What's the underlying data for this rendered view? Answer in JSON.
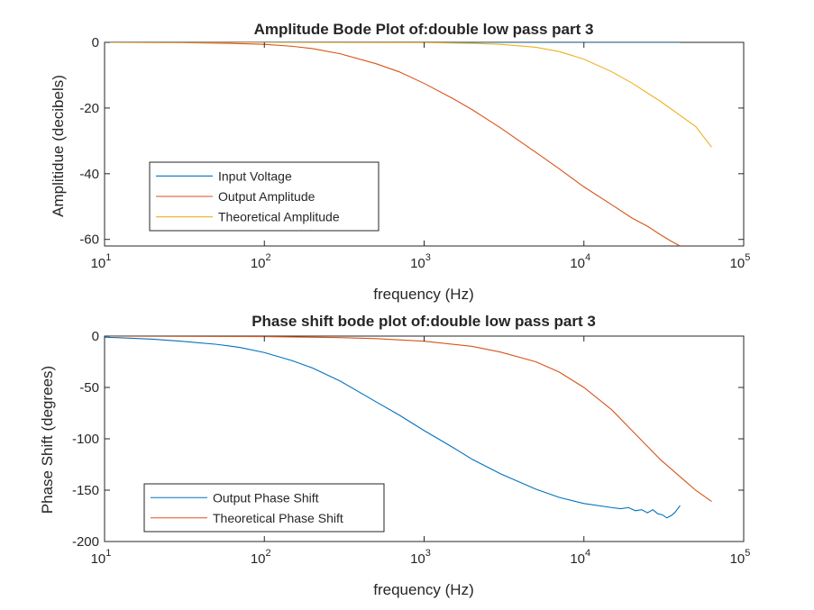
{
  "chart_data": [
    {
      "type": "line",
      "title": "Amplitude Bode Plot of:double low pass part 3",
      "xlabel": "frequency (Hz)",
      "ylabel": "Amplitidue (decibels)",
      "xscale": "log",
      "xlim": [
        10,
        100000
      ],
      "ylim": [
        -62,
        0
      ],
      "xticks": [
        10,
        100,
        1000,
        10000,
        100000
      ],
      "xtick_bases": [
        "10",
        "10",
        "10",
        "10",
        "10"
      ],
      "xtick_exponents": [
        "1",
        "2",
        "3",
        "4",
        "5"
      ],
      "yticks": [
        0,
        -20,
        -40,
        -60
      ],
      "ytick_labels": [
        "0",
        "-20",
        "-40",
        "-60"
      ],
      "grid": false,
      "legend_position": "lower-left",
      "series": [
        {
          "name": "Input Voltage",
          "color": "#0072BD",
          "x": [
            10,
            40000
          ],
          "y": [
            0,
            0
          ]
        },
        {
          "name": "Output Amplitude",
          "color": "#D95319",
          "x": [
            10,
            30,
            60,
            100,
            150,
            200,
            300,
            500,
            700,
            1000,
            1500,
            2000,
            3000,
            5000,
            7000,
            10000,
            15000,
            20000,
            25000,
            30000,
            35000,
            40000
          ],
          "y": [
            0,
            -0.1,
            -0.3,
            -0.6,
            -1.2,
            -1.9,
            -3.5,
            -6.5,
            -9,
            -12.5,
            -17,
            -20.5,
            -26,
            -33.5,
            -38.5,
            -44,
            -49.5,
            -53.5,
            -56,
            -58.5,
            -60.5,
            -62
          ]
        },
        {
          "name": "Theoretical Amplitude",
          "color": "#EDB120",
          "x": [
            10,
            100,
            1000,
            2000,
            3000,
            5000,
            7000,
            10000,
            15000,
            20000,
            30000,
            50000,
            63000
          ],
          "y": [
            0,
            0,
            -0.1,
            -0.3,
            -0.6,
            -1.5,
            -2.8,
            -5.1,
            -9,
            -12.4,
            -17.9,
            -25.6,
            -31.9
          ]
        }
      ]
    },
    {
      "type": "line",
      "title": "Phase shift bode plot of:double low pass part 3",
      "xlabel": "frequency (Hz)",
      "ylabel": "Phase Shift (degrees)",
      "xscale": "log",
      "xlim": [
        10,
        100000
      ],
      "ylim": [
        -200,
        0
      ],
      "xticks": [
        10,
        100,
        1000,
        10000,
        100000
      ],
      "xtick_bases": [
        "10",
        "10",
        "10",
        "10",
        "10"
      ],
      "xtick_exponents": [
        "1",
        "2",
        "3",
        "4",
        "5"
      ],
      "yticks": [
        0,
        -50,
        -100,
        -150,
        -200
      ],
      "ytick_labels": [
        "0",
        "-50",
        "-100",
        "-150",
        "-200"
      ],
      "grid": false,
      "legend_position": "lower-left",
      "series": [
        {
          "name": "Output Phase Shift",
          "color": "#0072BD",
          "x": [
            10,
            20,
            30,
            50,
            70,
            100,
            150,
            200,
            300,
            500,
            700,
            1000,
            1500,
            2000,
            3000,
            5000,
            7000,
            10000,
            15000,
            17000,
            19000,
            21000,
            23000,
            25000,
            27000,
            29000,
            31000,
            33000,
            35000,
            37000,
            40000
          ],
          "y": [
            -1,
            -3,
            -5,
            -8,
            -11,
            -16,
            -24,
            -31,
            -44,
            -64,
            -77,
            -92,
            -108,
            -120,
            -134,
            -149,
            -157,
            -163,
            -167,
            -168,
            -167,
            -170,
            -169,
            -172,
            -169,
            -173,
            -174,
            -177,
            -175,
            -172,
            -165
          ]
        },
        {
          "name": "Theoretical Phase Shift",
          "color": "#D95319",
          "x": [
            10,
            100,
            300,
            500,
            1000,
            2000,
            3000,
            5000,
            7000,
            10000,
            15000,
            20000,
            30000,
            50000,
            63000
          ],
          "y": [
            0,
            -0.5,
            -1.5,
            -2.5,
            -5,
            -10,
            -15.5,
            -25,
            -35,
            -50,
            -72,
            -92,
            -120,
            -150,
            -161
          ]
        }
      ]
    }
  ]
}
